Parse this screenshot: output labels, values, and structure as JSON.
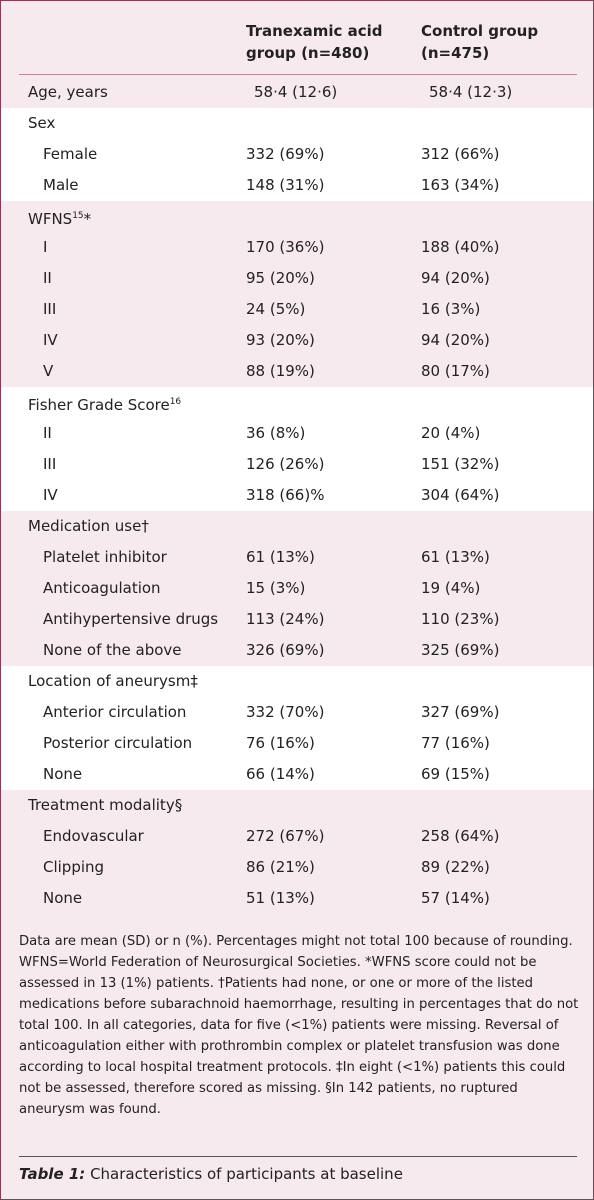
{
  "header": {
    "columns": [
      "Tranexamic acid group (n=480)",
      "Control group (n=475)"
    ]
  },
  "sections": [
    {
      "heading": "Age, years",
      "cells": [
        "58·4 (12·6)",
        "58·4 (12·3)"
      ],
      "rows": []
    },
    {
      "heading": "Sex",
      "rows": [
        [
          "Female",
          "332 (69%)",
          "312 (66%)"
        ],
        [
          "Male",
          "148 (31%)",
          "163 (34%)"
        ]
      ]
    },
    {
      "heading": "WFNS",
      "sup": "15",
      "suffix": "*",
      "rows": [
        [
          "I",
          "170 (36%)",
          "188 (40%)"
        ],
        [
          "II",
          "95 (20%)",
          "94 (20%)"
        ],
        [
          "III",
          "24 (5%)",
          "16 (3%)"
        ],
        [
          "IV",
          "93 (20%)",
          "94 (20%)"
        ],
        [
          "V",
          "88 (19%)",
          "80 (17%)"
        ]
      ]
    },
    {
      "heading": "Fisher Grade Score",
      "sup": "16",
      "rows": [
        [
          "II",
          "36 (8%)",
          "20 (4%)"
        ],
        [
          "III",
          "126 (26%)",
          "151 (32%)"
        ],
        [
          "IV",
          "318 (66)%",
          "304 (64%)"
        ]
      ]
    },
    {
      "heading": "Medication use†",
      "rows": [
        [
          "Platelet inhibitor",
          "61 (13%)",
          "61 (13%)"
        ],
        [
          "Anticoagulation",
          "15 (3%)",
          "19 (4%)"
        ],
        [
          "Antihypertensive drugs",
          "113 (24%)",
          "110 (23%)"
        ],
        [
          "None of the above",
          "326 (69%)",
          "325 (69%)"
        ]
      ]
    },
    {
      "heading": "Location of aneurysm‡",
      "rows": [
        [
          "Anterior circulation",
          "332 (70%)",
          "327 (69%)"
        ],
        [
          "Posterior circulation",
          "76 (16%)",
          "77 (16%)"
        ],
        [
          "None",
          "66 (14%)",
          "69 (15%)"
        ]
      ]
    },
    {
      "heading": "Treatment modality§",
      "rows": [
        [
          "Endovascular",
          "272 (67%)",
          "258 (64%)"
        ],
        [
          "Clipping",
          "86 (21%)",
          "89 (22%)"
        ],
        [
          "None",
          "51 (13%)",
          "57 (14%)"
        ]
      ]
    }
  ],
  "footnote": "Data are mean (SD) or n (%). Percentages might not total 100 because of rounding. WFNS=World Federation of Neurosurgical Societies. *WFNS score could not be assessed in 13 (1%) patients. †Patients had none, or one or more of the listed medications before subarachnoid haemorrhage, resulting in percentages that do not total 100. In all categories, data for five (<1%) patients were missing. Reversal of anticoagulation either with prothrombin complex or platelet transfusion was done according to local hospital treatment protocols. ‡In eight (<1%) patients this could not be assessed, therefore scored as missing. §In 142 patients, no ruptured aneurysm was found.",
  "caption": {
    "label": "Table 1:",
    "text": "Characteristics of participants at baseline"
  }
}
